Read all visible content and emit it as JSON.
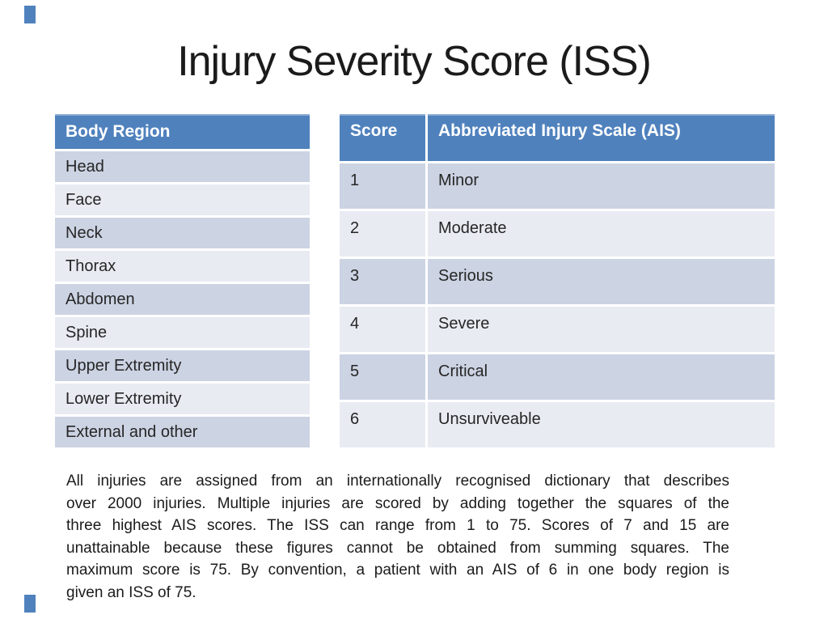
{
  "slide_title": "Injury Severity Score (ISS)",
  "colors": {
    "accent_blue": "#4f81bd",
    "row_dark": "#ccd3e3",
    "row_light": "#e9ebf3",
    "text": "#262626"
  },
  "body_region_table": {
    "header": "Body Region",
    "rows": [
      "Head",
      "Face",
      "Neck",
      "Thorax",
      "Abdomen",
      "Spine",
      "Upper Extremity",
      "Lower Extremity",
      "External and other"
    ]
  },
  "ais_table": {
    "score_header": "Score",
    "scale_header": "Abbreviated Injury Scale (AIS)",
    "rows": [
      {
        "score": "1",
        "severity": "Minor"
      },
      {
        "score": "2",
        "severity": "Moderate"
      },
      {
        "score": "3",
        "severity": "Serious"
      },
      {
        "score": "4",
        "severity": "Severe"
      },
      {
        "score": "5",
        "severity": "Critical"
      },
      {
        "score": "6",
        "severity": "Unsurviveable"
      }
    ]
  },
  "description_lines": [
    "All injuries are assigned from an internationally recognised dictionary that describes",
    "over 2000 injuries. Multiple injuries are scored by adding together the squares of the",
    "three highest AIS scores. The ISS can range from 1 to 75. Scores of 7 and 15 are",
    "unattainable because these figures cannot be obtained from summing squares. The",
    "maximum score is 75. By convention, a patient with an AIS of 6 in one body region is",
    "given an ISS of 75."
  ]
}
